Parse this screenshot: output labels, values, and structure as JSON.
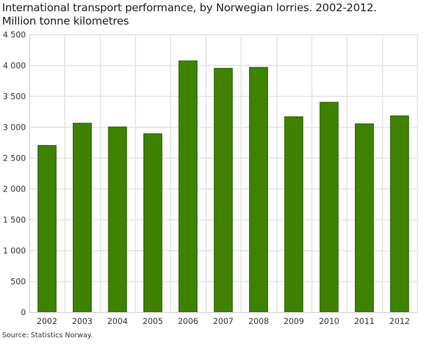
{
  "title_line1": "International transport performance, by Norwegian lorries. 2002-2012.",
  "title_line2": "Million tonne kilometres",
  "source": "Source: Statistics Norway.",
  "colors": {
    "bar_fill": "#3e8200",
    "bar_stroke": "#2a5a00",
    "grid": "#e2e2e2",
    "axis": "#cccccc",
    "text": "#333333"
  },
  "chart_data": {
    "type": "bar",
    "title": "International transport performance, by Norwegian lorries. 2002-2012. Million tonne kilometres",
    "xlabel": "",
    "ylabel": "Million tonne kilometres",
    "categories": [
      "2002",
      "2003",
      "2004",
      "2005",
      "2006",
      "2007",
      "2008",
      "2009",
      "2010",
      "2011",
      "2012"
    ],
    "values": [
      2700,
      3060,
      3000,
      2890,
      4070,
      3950,
      3965,
      3165,
      3400,
      3050,
      3180
    ],
    "ylim": [
      0,
      4500
    ],
    "yticks": [
      0,
      500,
      1000,
      1500,
      2000,
      2500,
      3000,
      3500,
      4000,
      4500
    ],
    "ytick_labels": [
      "0",
      "500",
      "1 000",
      "1 500",
      "2 000",
      "2 500",
      "3 000",
      "3 500",
      "4 000",
      "4 500"
    ],
    "grid": true,
    "legend": null
  }
}
